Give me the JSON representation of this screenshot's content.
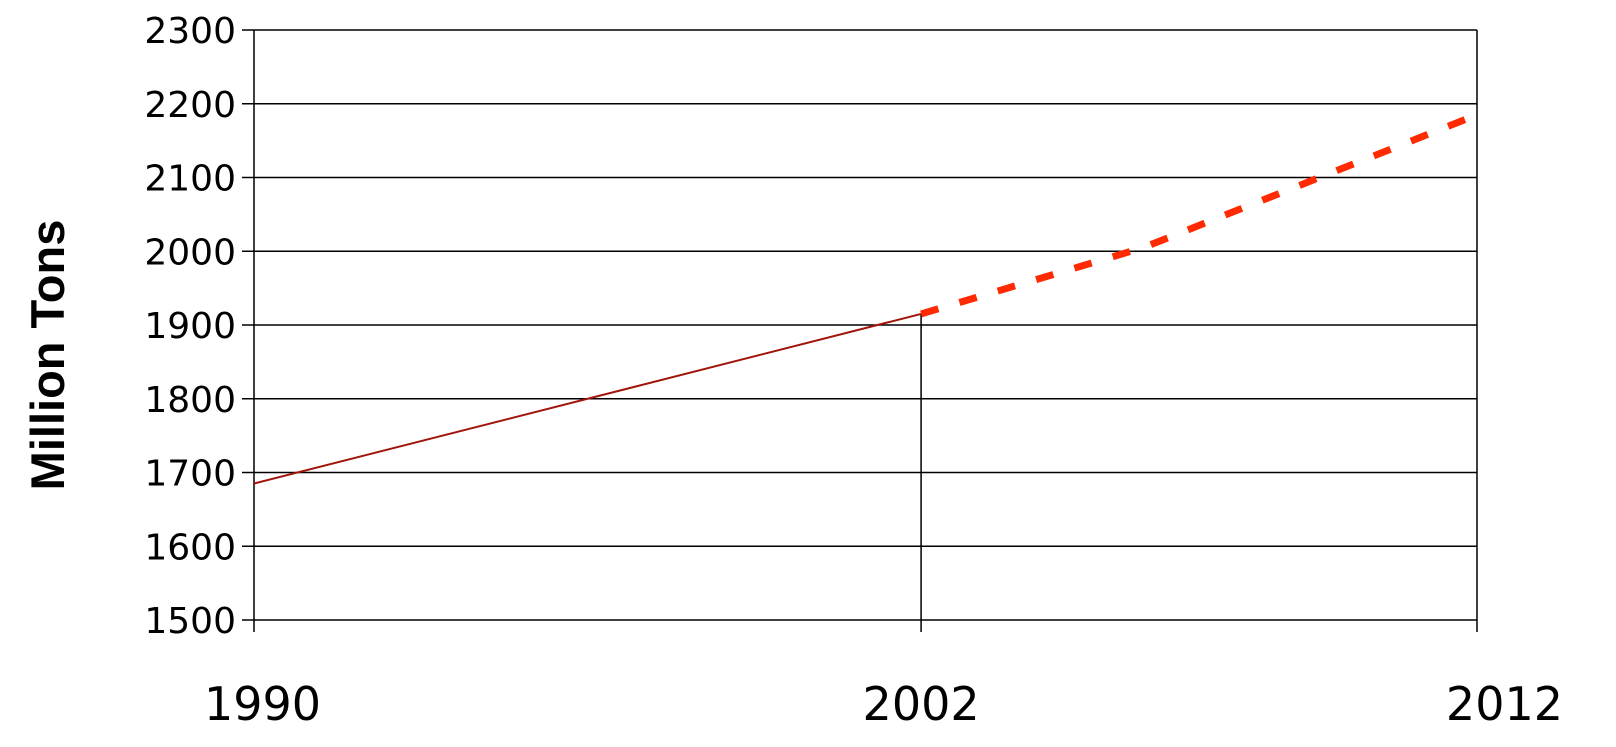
{
  "chart_data": {
    "type": "line",
    "title": "",
    "xlabel": "",
    "ylabel": "Million Tons",
    "x_ticks": [
      "1990",
      "2002",
      "2012"
    ],
    "y_ticks": [
      "1500",
      "1600",
      "1700",
      "1800",
      "1900",
      "2000",
      "2100",
      "2200",
      "2300"
    ],
    "xlim": [
      1990,
      2012
    ],
    "ylim": [
      1500,
      2300
    ],
    "grid": true,
    "legend": "none",
    "series": [
      {
        "style": "solid",
        "color": "#a0140a",
        "points": [
          {
            "x": 1990,
            "y": 1685
          },
          {
            "x": 2002,
            "y": 1915
          }
        ]
      },
      {
        "style": "dashed",
        "color": "#ff2a00",
        "points": [
          {
            "x": 2002,
            "y": 1915
          },
          {
            "x": 2006,
            "y": 2005
          },
          {
            "x": 2012,
            "y": 2185
          }
        ]
      }
    ],
    "marker_line": {
      "x": 2002,
      "y_from": 1500,
      "y_to": 1915
    }
  }
}
